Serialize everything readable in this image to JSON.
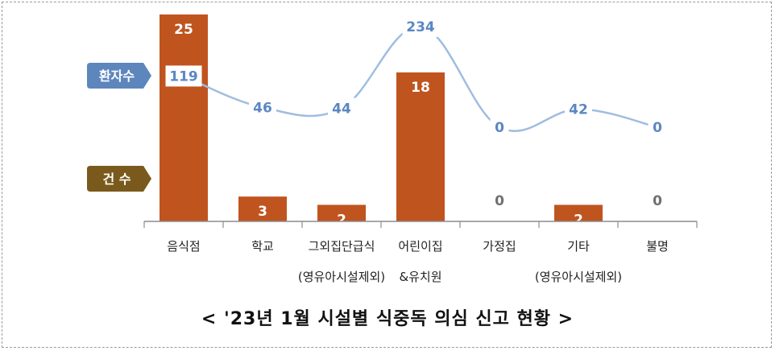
{
  "chart_data": {
    "type": "bar",
    "title": "< '23년 1월 시설별 식중독 의심 신고 현황 >",
    "categories": [
      [
        "음식점"
      ],
      [
        "학교"
      ],
      [
        "그외집단급식",
        "(영유아시설제외)"
      ],
      [
        "어린이집",
        "&유치원"
      ],
      [
        "가정집"
      ],
      [
        "기타",
        "(영유아시설제외)"
      ],
      [
        "불명"
      ]
    ],
    "series": [
      {
        "name": "건 수",
        "type": "bar",
        "values": [
          25,
          3,
          2,
          18,
          0,
          2,
          0
        ]
      },
      {
        "name": "환자수",
        "type": "line",
        "values": [
          119,
          46,
          44,
          234,
          0,
          42,
          0
        ]
      }
    ],
    "bar_ylim": [
      0,
      25
    ],
    "line_ylim": [
      0,
      234
    ]
  },
  "colors": {
    "bar": "#c0541f",
    "line": "#9fbde0",
    "line_label": "#5b87c2",
    "patient_badge": "#5d86bd",
    "count_badge": "#7a5a1c",
    "zero_label": "#707070",
    "axis": "#8c8c8c"
  },
  "caption": "< '23년 1월 시설별 식중독 의심 신고 현황 >"
}
